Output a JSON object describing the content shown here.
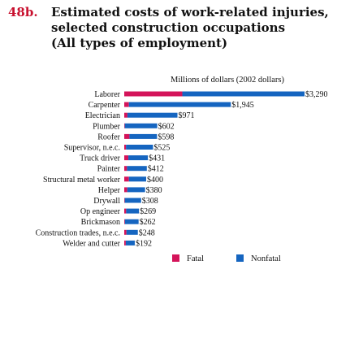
{
  "figure": {
    "number": "48b.",
    "title_lines": [
      "Estimated costs of work-related injuries,",
      "selected construction occupations",
      "(All types of employment)"
    ]
  },
  "chart_data": {
    "type": "bar",
    "orientation": "horizontal",
    "stacked": true,
    "title": "Estimated costs of work-related injuries, selected construction occupations (All types of employment)",
    "unit_label": "Millions of dollars (2002 dollars)",
    "categories": [
      "Laborer",
      "Carpenter",
      "Electrician",
      "Plumber",
      "Roofer",
      "Supervisor, n.e.c.",
      "Truck driver",
      "Painter",
      "Structural metal worker",
      "Helper",
      "Drywall",
      "Op engineer",
      "Brickmason",
      "Construction trades, n.e.c.",
      "Welder and cutter"
    ],
    "series": [
      {
        "name": "Fatal",
        "color": "#d4145a",
        "values": [
          1060,
          85,
          58,
          10,
          95,
          32,
          75,
          50,
          85,
          55,
          10,
          35,
          12,
          40,
          28
        ]
      },
      {
        "name": "Nonfatal",
        "color": "#1565c0",
        "values": [
          2230,
          1860,
          913,
          592,
          503,
          493,
          356,
          362,
          315,
          325,
          298,
          234,
          250,
          208,
          164
        ]
      }
    ],
    "total_labels": [
      "$3,290",
      "$1,945",
      "$971",
      "$602",
      "$598",
      "$525",
      "$431",
      "$412",
      "$400",
      "$380",
      "$308",
      "$269",
      "$262",
      "$248",
      "$192"
    ],
    "xlim": [
      0,
      3290
    ],
    "grid": false,
    "legend": {
      "position": "bottom",
      "entries": [
        "Fatal",
        "Nonfatal"
      ]
    }
  }
}
